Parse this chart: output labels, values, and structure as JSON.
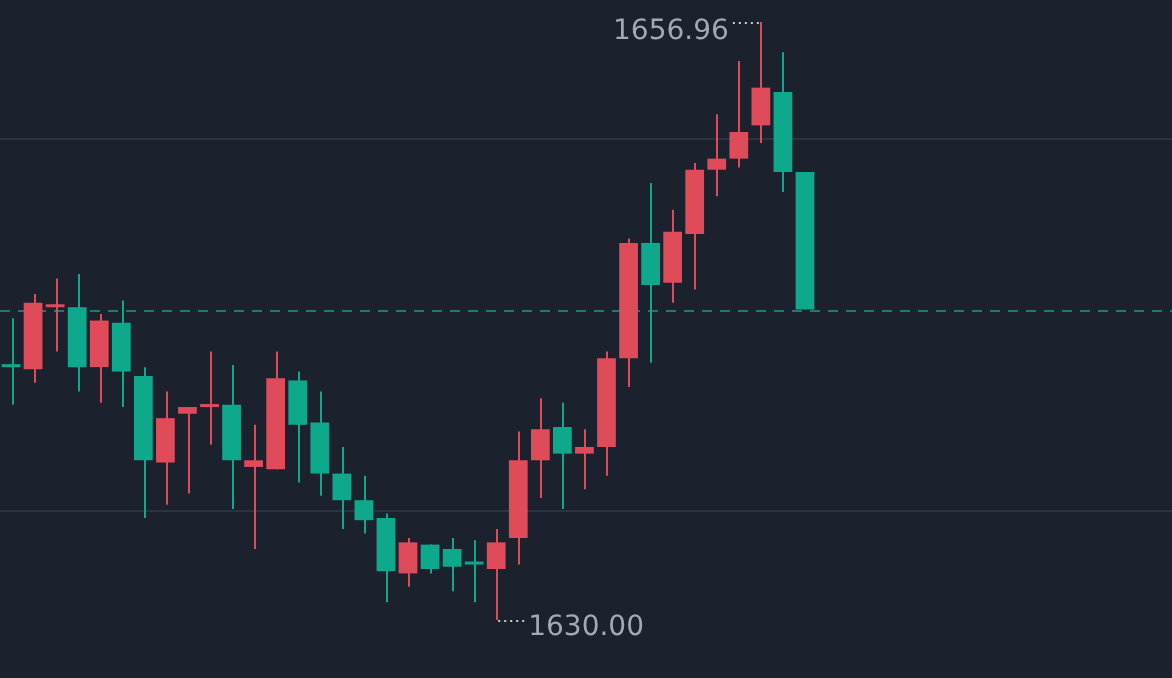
{
  "chart_data": {
    "type": "candlestick",
    "categories": [
      null,
      null,
      null,
      null,
      null,
      null,
      null,
      null,
      null,
      null,
      null,
      null,
      null,
      null,
      null,
      null,
      null,
      null,
      null,
      null,
      null,
      null,
      null,
      null,
      null,
      null,
      null,
      null,
      null,
      null,
      null,
      null,
      null,
      null,
      null,
      null,
      null
    ],
    "ohlc": [
      [
        1641.5,
        1643.6,
        1639.7,
        1641.4
      ],
      [
        1641.3,
        1644.7,
        1640.7,
        1644.3
      ],
      [
        1644.1,
        1645.4,
        1642.1,
        1644.2
      ],
      [
        1644.1,
        1645.6,
        1640.3,
        1641.4
      ],
      [
        1641.4,
        1643.8,
        1639.8,
        1643.5
      ],
      [
        1643.4,
        1644.4,
        1639.6,
        1641.2
      ],
      [
        1641.0,
        1641.4,
        1634.6,
        1637.2
      ],
      [
        1637.1,
        1640.3,
        1635.2,
        1639.1
      ],
      [
        1639.3,
        1639.6,
        1635.7,
        1639.6
      ],
      [
        1639.6,
        1642.1,
        1637.9,
        1639.7
      ],
      [
        1639.7,
        1641.5,
        1635.0,
        1637.2
      ],
      [
        1636.9,
        1638.8,
        1633.2,
        1637.2
      ],
      [
        1636.8,
        1642.1,
        1636.8,
        1640.9
      ],
      [
        1640.8,
        1641.2,
        1636.2,
        1638.8
      ],
      [
        1638.9,
        1640.3,
        1635.6,
        1636.6
      ],
      [
        1636.6,
        1637.8,
        1634.1,
        1635.4
      ],
      [
        1635.4,
        1636.5,
        1633.9,
        1634.5
      ],
      [
        1634.6,
        1634.8,
        1630.8,
        1632.2
      ],
      [
        1632.1,
        1633.7,
        1631.5,
        1633.5
      ],
      [
        1633.4,
        1633.4,
        1632.1,
        1632.3
      ],
      [
        1633.2,
        1633.7,
        1631.3,
        1632.4
      ],
      [
        1632.6,
        1633.6,
        1630.8,
        1632.5
      ],
      [
        1632.3,
        1634.1,
        1630.0,
        1633.5
      ],
      [
        1633.7,
        1638.5,
        1632.5,
        1637.2
      ],
      [
        1637.2,
        1640.0,
        1635.5,
        1638.6
      ],
      [
        1638.7,
        1639.8,
        1635.0,
        1637.5
      ],
      [
        1637.5,
        1638.6,
        1635.9,
        1637.8
      ],
      [
        1637.8,
        1642.1,
        1636.5,
        1641.8
      ],
      [
        1641.8,
        1647.2,
        1640.5,
        1647.0
      ],
      [
        1647.0,
        1649.7,
        1641.6,
        1645.1
      ],
      [
        1645.2,
        1648.5,
        1644.3,
        1647.5
      ],
      [
        1647.4,
        1650.6,
        1644.9,
        1650.3
      ],
      [
        1650.3,
        1652.8,
        1649.1,
        1650.8
      ],
      [
        1650.8,
        1655.2,
        1650.4,
        1652.0
      ],
      [
        1652.3,
        1656.96,
        1651.5,
        1654.0
      ],
      [
        1653.8,
        1655.6,
        1649.3,
        1650.2
      ],
      [
        1650.2,
        1650.2,
        1644.0,
        1644.0
      ]
    ],
    "colors": [
      "#0ea88c",
      "#e04b5a",
      "#e04b5a",
      "#0ea88c",
      "#e04b5a",
      "#0ea88c",
      "#0ea88c",
      "#e04b5a",
      "#e04b5a",
      "#e04b5a",
      "#0ea88c",
      "#e04b5a",
      "#e04b5a",
      "#0ea88c",
      "#0ea88c",
      "#0ea88c",
      "#0ea88c",
      "#0ea88c",
      "#e04b5a",
      "#0ea88c",
      "#0ea88c",
      "#0ea88c",
      "#e04b5a",
      "#e04b5a",
      "#e04b5a",
      "#0ea88c",
      "#e04b5a",
      "#e04b5a",
      "#e04b5a",
      "#0ea88c",
      "#e04b5a",
      "#e04b5a",
      "#e04b5a",
      "#e04b5a",
      "#e04b5a",
      "#0ea88c",
      "#0ea88c"
    ],
    "yticks": [
      {
        "value": 1651.7,
        "label": null
      },
      {
        "value": 1635.0,
        "label": null
      }
    ],
    "grid": "y",
    "tick_labels": false,
    "legend": false,
    "ref_lines": [
      {
        "axis": "y",
        "value": 1644.0,
        "label": null,
        "color": "#1f7a6c",
        "line_style": "dashed"
      }
    ],
    "annotations": [
      "1656.96",
      "1630.00"
    ]
  }
}
